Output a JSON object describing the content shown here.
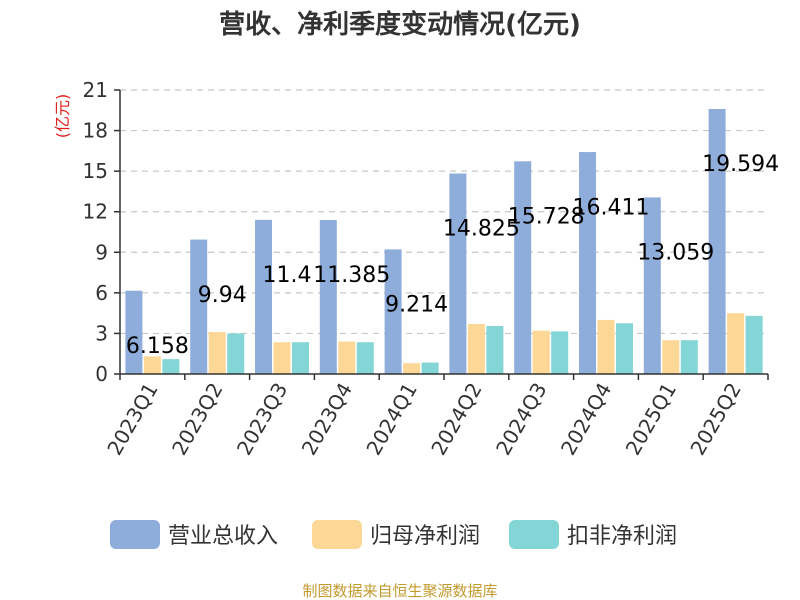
{
  "chart_data": {
    "type": "bar",
    "title": "营收、净利季度变动情况(亿元)",
    "ylabel": "(亿元)",
    "xlabel": "",
    "ylim": [
      0,
      21
    ],
    "yticks": [
      0,
      3,
      6,
      9,
      12,
      15,
      18,
      21
    ],
    "grid": true,
    "legend_position": "bottom",
    "categories": [
      "2023Q1",
      "2023Q2",
      "2023Q3",
      "2023Q4",
      "2024Q1",
      "2024Q2",
      "2024Q3",
      "2024Q4",
      "2025Q1",
      "2025Q2"
    ],
    "series": [
      {
        "name": "营业总收入",
        "color": "#8eaddb",
        "values": [
          6.158,
          9.94,
          11.4,
          11.385,
          9.214,
          14.825,
          15.728,
          16.411,
          13.059,
          19.594
        ]
      },
      {
        "name": "归母净利润",
        "color": "#fdd795",
        "values": [
          1.3,
          3.1,
          2.35,
          2.4,
          0.8,
          3.7,
          3.2,
          4.0,
          2.5,
          4.5
        ]
      },
      {
        "name": "扣非净利润",
        "color": "#84d5d5",
        "values": [
          1.1,
          3.0,
          2.35,
          2.35,
          0.85,
          3.55,
          3.15,
          3.75,
          2.5,
          4.3
        ]
      }
    ],
    "data_labels": [
      "6.158",
      "9.94",
      "11.4",
      "11.385",
      "9.214",
      "14.825",
      "15.728",
      "16.411",
      "13.059",
      "19.594"
    ],
    "source": "制图数据来自恒生聚源数据库"
  }
}
